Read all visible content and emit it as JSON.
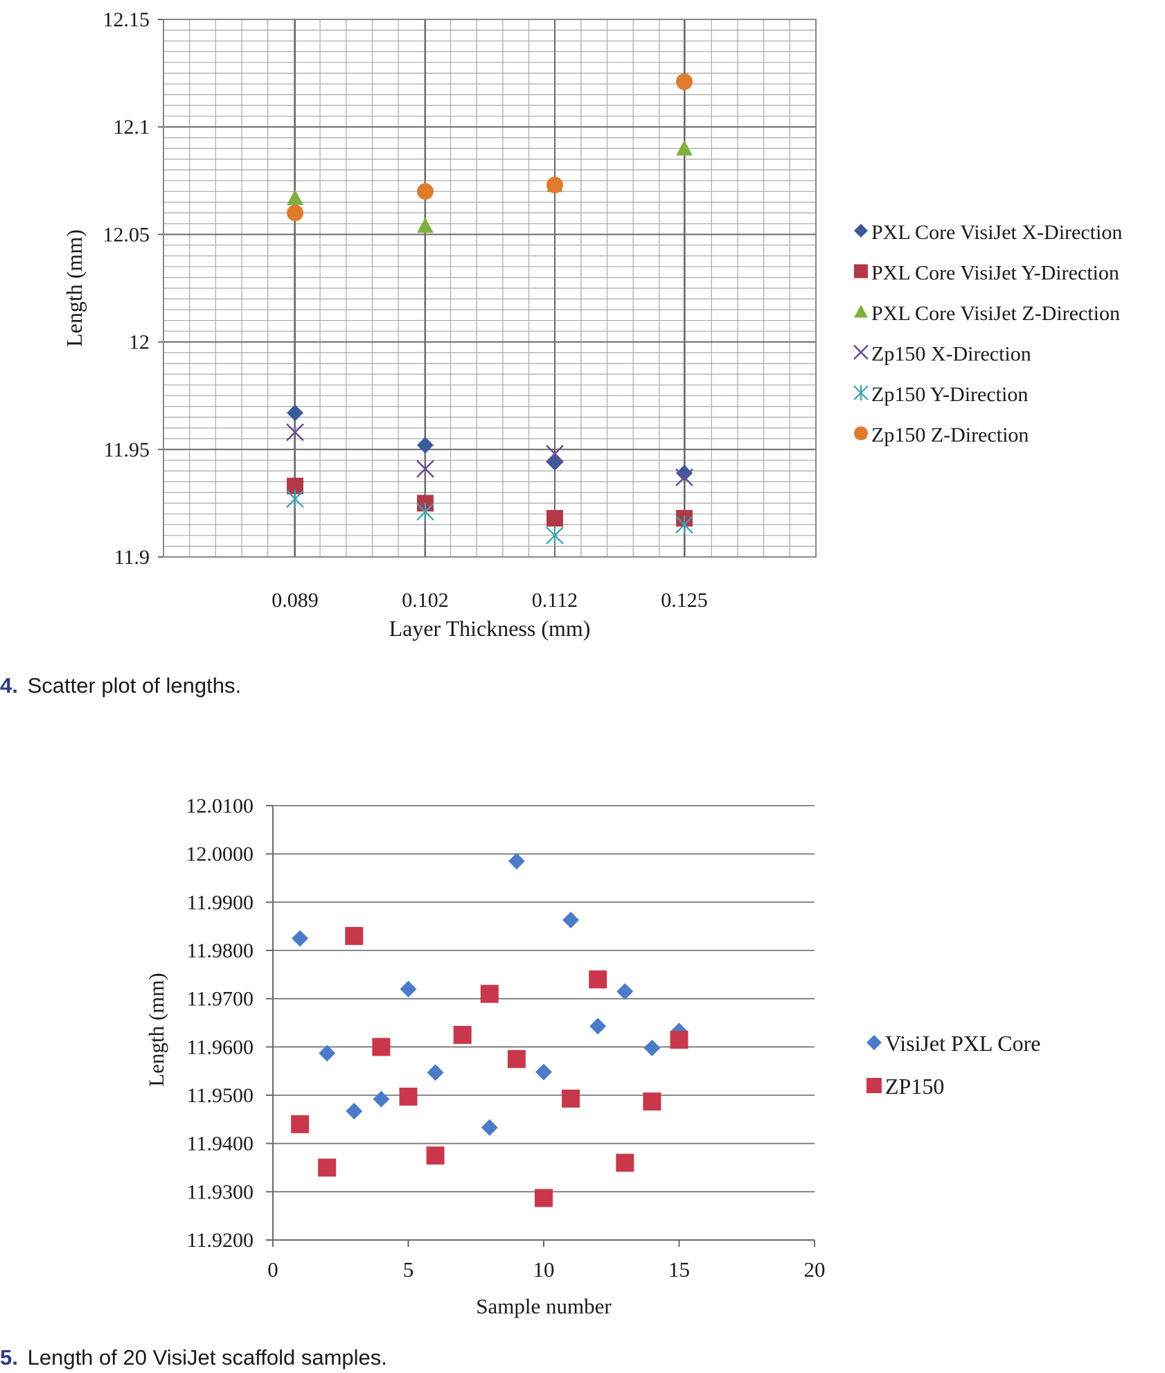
{
  "chart_data": [
    {
      "type": "scatter",
      "title": "",
      "xlabel": "Layer Thickness (mm)",
      "ylabel": "Length (mm)",
      "categories": [
        "0.089",
        "0.102",
        "0.112",
        "0.125"
      ],
      "ylim": [
        11.9,
        12.15
      ],
      "yticks": [
        "11.9",
        "11.95",
        "12",
        "12.05",
        "12.1",
        "12.15"
      ],
      "grid": true,
      "legend_position": "right",
      "caption_number": "4.",
      "caption_text": "Scatter plot of lengths.",
      "series": [
        {
          "name": "PXL Core VisiJet X-Direction",
          "marker": "diamond",
          "color": "#3c5a99",
          "values": [
            11.967,
            11.952,
            11.944,
            11.939
          ]
        },
        {
          "name": "PXL Core VisiJet Y-Direction",
          "marker": "square",
          "color": "#b23a48",
          "values": [
            11.933,
            11.925,
            11.918,
            11.918
          ]
        },
        {
          "name": "PXL Core VisiJet Z-Direction",
          "marker": "triangle",
          "color": "#7fb03f",
          "values": [
            12.067,
            12.054,
            12.073,
            12.09
          ]
        },
        {
          "name": "Zp150 X-Direction",
          "marker": "x",
          "color": "#6b4c8f",
          "values": [
            11.958,
            11.941,
            11.948,
            11.937
          ]
        },
        {
          "name": "Zp150 Y-Direction",
          "marker": "star",
          "color": "#3aa3b5",
          "values": [
            11.927,
            11.921,
            11.91,
            11.915
          ]
        },
        {
          "name": "Zp150 Z-Direction",
          "marker": "circle",
          "color": "#e07b2e",
          "values": [
            12.06,
            12.07,
            12.073,
            12.121
          ]
        }
      ]
    },
    {
      "type": "scatter",
      "title": "",
      "xlabel": "Sample number",
      "ylabel": "Length (mm)",
      "xlim": [
        0,
        20
      ],
      "xticks": [
        "0",
        "5",
        "10",
        "15",
        "20"
      ],
      "ylim": [
        11.92,
        12.01
      ],
      "yticks": [
        "11.9200",
        "11.9300",
        "11.9400",
        "11.9500",
        "11.9600",
        "11.9700",
        "11.9800",
        "11.9900",
        "12.0000",
        "12.0100"
      ],
      "grid": true,
      "legend_position": "right",
      "caption_number": "5.",
      "caption_text": "Length of 20 VisiJet scaffold samples.",
      "series": [
        {
          "name": "VisiJet PXL Core",
          "marker": "diamond",
          "color": "#4a7cc9",
          "x": [
            1,
            2,
            3,
            4,
            5,
            6,
            8,
            9,
            10,
            11,
            12,
            13,
            14,
            15
          ],
          "y": [
            11.9825,
            11.9587,
            11.9467,
            11.9492,
            11.972,
            11.9547,
            11.9433,
            11.9985,
            11.9548,
            11.9863,
            11.9643,
            11.9715,
            11.9598,
            11.9633
          ]
        },
        {
          "name": "ZP150",
          "marker": "square",
          "color": "#c9384a",
          "x": [
            1,
            2,
            3,
            4,
            5,
            6,
            7,
            8,
            9,
            10,
            11,
            12,
            13,
            14,
            15
          ],
          "y": [
            11.944,
            11.935,
            11.983,
            11.96,
            11.9497,
            11.9375,
            11.9625,
            11.971,
            11.9575,
            11.9287,
            11.9493,
            11.974,
            11.936,
            11.9487,
            11.9615
          ]
        }
      ]
    }
  ]
}
